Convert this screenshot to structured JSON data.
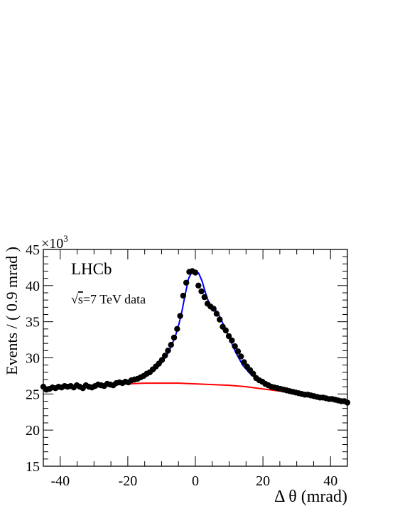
{
  "chart_data": {
    "type": "scatter",
    "xlabel": "Δ θ (mrad)",
    "ylabel": "Events / ( 0.9 mrad )",
    "y_multiplier_label": "×10",
    "y_multiplier_exp": "3",
    "xlim": [
      -45,
      45
    ],
    "ylim": [
      15,
      45
    ],
    "x_ticks": [
      -40,
      -20,
      0,
      20,
      40
    ],
    "y_ticks": [
      15,
      20,
      25,
      30,
      35,
      40,
      45
    ],
    "grid": false,
    "annotations": {
      "experiment": "LHCb",
      "sqrt_symbol": "√",
      "energy_var": "s",
      "energy_text": "=7 TeV data"
    },
    "series": [
      {
        "kind": "points",
        "color": "#000000",
        "x": [
          -45,
          -44.1,
          -43.2,
          -42.3,
          -41.4,
          -40.5,
          -39.6,
          -38.7,
          -37.8,
          -36.9,
          -36,
          -35.1,
          -34.2,
          -33.3,
          -32.4,
          -31.5,
          -30.6,
          -29.7,
          -28.8,
          -27.9,
          -27,
          -26.1,
          -25.2,
          -24.3,
          -23.4,
          -22.5,
          -21.6,
          -20.7,
          -19.8,
          -18.9,
          -18,
          -17.1,
          -16.2,
          -15.3,
          -14.4,
          -13.5,
          -12.6,
          -11.7,
          -10.8,
          -9.9,
          -9,
          -8.1,
          -7.2,
          -6.3,
          -5.4,
          -4.5,
          -3.6,
          -2.7,
          -1.8,
          -0.9,
          0,
          0.9,
          1.8,
          2.7,
          3.6,
          4.5,
          5.4,
          6.3,
          7.2,
          8.1,
          9,
          9.9,
          10.8,
          11.7,
          12.6,
          13.5,
          14.4,
          15.3,
          16.2,
          17.1,
          18,
          18.9,
          19.8,
          20.7,
          21.6,
          22.5,
          23.4,
          24.3,
          25.2,
          26.1,
          27,
          27.9,
          28.8,
          29.7,
          30.6,
          31.5,
          32.4,
          33.3,
          34.2,
          35.1,
          36,
          36.9,
          37.8,
          38.7,
          39.6,
          40.5,
          41.4,
          42.3,
          43.2,
          44.1,
          45
        ],
        "y": [
          26.0,
          25.6,
          25.7,
          25.9,
          25.8,
          26.0,
          25.9,
          26.1,
          26.0,
          26.1,
          25.9,
          26.2,
          26.0,
          25.8,
          26.2,
          26.0,
          25.9,
          26.1,
          26.3,
          26.2,
          26.1,
          26.4,
          26.3,
          26.2,
          26.5,
          26.6,
          26.5,
          26.7,
          26.6,
          26.9,
          27.0,
          27.1,
          27.3,
          27.5,
          27.8,
          28.0,
          28.4,
          28.8,
          29.2,
          29.7,
          30.3,
          31.0,
          31.8,
          32.8,
          34.0,
          35.8,
          38.6,
          40.4,
          41.9,
          42.0,
          41.8,
          40.0,
          39.2,
          38.4,
          37.5,
          37.1,
          36.8,
          36.1,
          35.3,
          34.3,
          33.8,
          33.0,
          32.4,
          31.6,
          30.9,
          30.2,
          29.4,
          28.8,
          28.3,
          27.8,
          27.2,
          26.9,
          26.7,
          26.4,
          26.2,
          26.0,
          25.9,
          25.8,
          25.7,
          25.6,
          25.5,
          25.4,
          25.3,
          25.2,
          25.1,
          25.0,
          24.9,
          24.9,
          24.8,
          24.7,
          24.6,
          24.5,
          24.5,
          24.4,
          24.3,
          24.3,
          24.2,
          24.1,
          24.0,
          24.0,
          23.8
        ]
      },
      {
        "kind": "line",
        "color": "#0000ff",
        "x": [
          -45,
          -40,
          -35,
          -30,
          -25,
          -20,
          -18,
          -16,
          -14,
          -12,
          -10,
          -8,
          -6,
          -5,
          -4,
          -3,
          -2,
          -1,
          0,
          1,
          2,
          3,
          4,
          5,
          6,
          7,
          8,
          10,
          12,
          14,
          16,
          18,
          20,
          25,
          30,
          35,
          40,
          45
        ],
        "y": [
          25.6,
          25.8,
          26.0,
          26.1,
          26.3,
          26.5,
          26.8,
          27.1,
          27.6,
          28.3,
          29.3,
          30.7,
          32.9,
          34.4,
          36.4,
          38.8,
          41.0,
          41.9,
          42.0,
          41.7,
          40.6,
          39.0,
          37.6,
          37.0,
          36.6,
          35.9,
          34.9,
          32.8,
          30.7,
          29.0,
          27.9,
          27.1,
          26.6,
          25.8,
          25.2,
          24.7,
          24.3,
          23.8
        ]
      },
      {
        "kind": "line",
        "color": "#ff0000",
        "x": [
          -45,
          -40,
          -35,
          -30,
          -25,
          -20,
          -15,
          -10,
          -5,
          0,
          5,
          10,
          15,
          20,
          25,
          30,
          35,
          40,
          45
        ],
        "y": [
          25.6,
          25.8,
          26.0,
          26.2,
          26.3,
          26.4,
          26.5,
          26.5,
          26.5,
          26.4,
          26.3,
          26.2,
          26.0,
          25.7,
          25.4,
          25.1,
          24.7,
          24.3,
          23.8
        ]
      }
    ]
  }
}
